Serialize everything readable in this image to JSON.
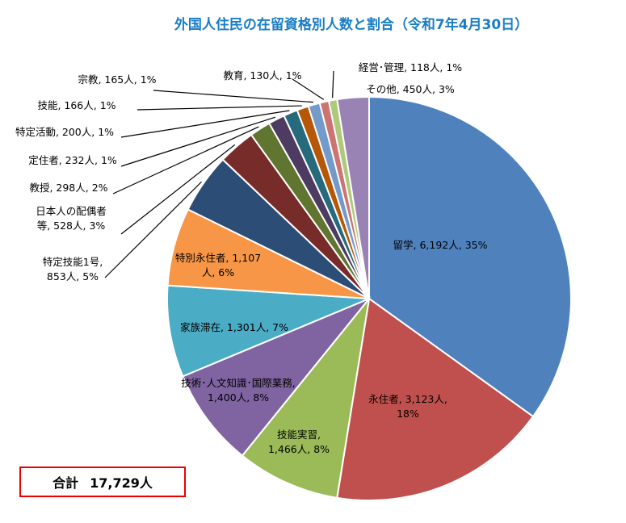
{
  "chart_data": {
    "type": "pie",
    "title": "外国人住民の在留資格別人数と割合（令和7年4月30日）",
    "unit": "人",
    "slices": [
      {
        "label": "留学",
        "value": 6192,
        "percent": "35%",
        "color": "#4f81bd"
      },
      {
        "label": "永住者",
        "value": 3123,
        "percent": "18%",
        "color": "#c0504d"
      },
      {
        "label": "技能実習",
        "value": 1466,
        "percent": "8%",
        "color": "#9bbb59"
      },
      {
        "label": "技術･人文知識･国際業務",
        "value": 1400,
        "percent": "8%",
        "color": "#8064a2"
      },
      {
        "label": "家族滞在",
        "value": 1301,
        "percent": "7%",
        "color": "#4bacc6"
      },
      {
        "label": "特別永住者",
        "value": 1107,
        "percent": "6%",
        "color": "#f79646"
      },
      {
        "label": "特定技能1号",
        "value": 853,
        "percent": "5%",
        "color": "#2c4d75"
      },
      {
        "label": "日本人の配偶者等",
        "value": 528,
        "percent": "3%",
        "color": "#772c2a"
      },
      {
        "label": "教授",
        "value": 298,
        "percent": "2%",
        "color": "#5f7530"
      },
      {
        "label": "定住者",
        "value": 232,
        "percent": "1%",
        "color": "#4d3b62"
      },
      {
        "label": "特定活動",
        "value": 200,
        "percent": "1%",
        "color": "#276a7c"
      },
      {
        "label": "技能",
        "value": 166,
        "percent": "1%",
        "color": "#b65708"
      },
      {
        "label": "宗教",
        "value": 165,
        "percent": "1%",
        "color": "#729aca"
      },
      {
        "label": "教育",
        "value": 130,
        "percent": "1%",
        "color": "#cd7371"
      },
      {
        "label": "経営･管理",
        "value": 118,
        "percent": "1%",
        "color": "#afc97a"
      },
      {
        "label": "その他",
        "value": 450,
        "percent": "3%",
        "color": "#9983b5"
      }
    ],
    "data_labels": [
      [
        "留学, 6,192人, 35%"
      ],
      [
        "永住者, 3,123人,",
        "18%"
      ],
      [
        "技能実習,",
        "1,466人, 8%"
      ],
      [
        "技術･人文知識･国際業務,",
        "1,400人, 8%"
      ],
      [
        "家族滞在, 1,301人, 7%"
      ],
      [
        "特別永住者, 1,107",
        "人, 6%"
      ],
      [
        "特定技能1号,",
        "853人, 5%"
      ],
      [
        "日本人の配偶者",
        "等, 528人, 3%"
      ],
      [
        "教授, 298人, 2%"
      ],
      [
        "定住者, 232人, 1%"
      ],
      [
        "特定活動, 200人, 1%"
      ],
      [
        "技能, 166人, 1%"
      ],
      [
        "宗教, 165人, 1%"
      ],
      [
        "教育, 130人, 1%"
      ],
      [
        "経営･管理, 118人, 1%"
      ],
      [
        "その他, 450人, 3%"
      ]
    ]
  },
  "total": {
    "label": "合計",
    "value": "17,729人"
  }
}
